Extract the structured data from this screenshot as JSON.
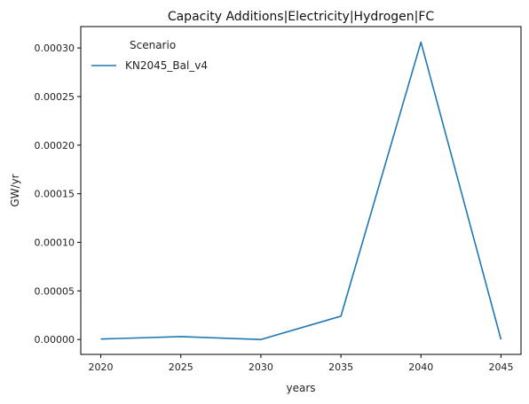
{
  "chart_data": {
    "type": "line",
    "title": "Capacity Additions|Electricity|Hydrogen|FC",
    "xlabel": "years",
    "ylabel": "GW/yr",
    "x": [
      2020,
      2025,
      2030,
      2035,
      2040,
      2045
    ],
    "xticks": [
      2020,
      2025,
      2030,
      2035,
      2040,
      2045
    ],
    "xlim": [
      2018.75,
      2046.25
    ],
    "yticks": [
      0.0,
      5e-05,
      0.0001,
      0.00015,
      0.0002,
      0.00025,
      0.0003
    ],
    "ytick_labels": [
      "0.00000",
      "0.00005",
      "0.00010",
      "0.00015",
      "0.00020",
      "0.00025",
      "0.00030"
    ],
    "ylim": [
      -1.53e-05,
      0.000322
    ],
    "grid": false,
    "legend": {
      "title": "Scenario",
      "placement": "top-left"
    },
    "series": [
      {
        "name": "KN2045_Bal_v4",
        "color": "#1f77b4",
        "values": [
          5e-07,
          3e-06,
          0.0,
          2.4e-05,
          0.000306,
          0.0
        ]
      }
    ]
  }
}
